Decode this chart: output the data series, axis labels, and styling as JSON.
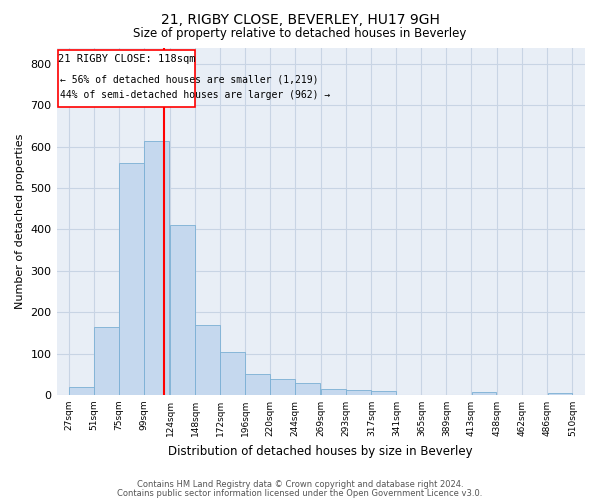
{
  "title": "21, RIGBY CLOSE, BEVERLEY, HU17 9GH",
  "subtitle": "Size of property relative to detached houses in Beverley",
  "xlabel": "Distribution of detached houses by size in Beverley",
  "ylabel": "Number of detached properties",
  "bar_color": "#c5d8ee",
  "bar_edge_color": "#7aafd4",
  "grid_color": "#c8d4e4",
  "bg_color": "#e8eef6",
  "vline_x": 118,
  "vline_color": "red",
  "bin_starts": [
    27,
    51,
    75,
    99,
    124,
    148,
    172,
    196,
    220,
    244,
    269,
    293,
    317,
    341,
    365,
    389,
    413,
    438,
    462,
    486
  ],
  "bin_width": 24,
  "bin_labels": [
    "27sqm",
    "51sqm",
    "75sqm",
    "99sqm",
    "124sqm",
    "148sqm",
    "172sqm",
    "196sqm",
    "220sqm",
    "244sqm",
    "269sqm",
    "293sqm",
    "317sqm",
    "341sqm",
    "365sqm",
    "389sqm",
    "413sqm",
    "438sqm",
    "462sqm",
    "486sqm",
    "510sqm"
  ],
  "bar_heights": [
    18,
    165,
    560,
    615,
    410,
    170,
    103,
    50,
    38,
    30,
    14,
    12,
    10,
    0,
    0,
    0,
    7,
    0,
    0,
    5
  ],
  "annotation_title": "21 RIGBY CLOSE: 118sqm",
  "annotation_line1": "← 56% of detached houses are smaller (1,219)",
  "annotation_line2": "44% of semi-detached houses are larger (962) →",
  "footer1": "Contains HM Land Registry data © Crown copyright and database right 2024.",
  "footer2": "Contains public sector information licensed under the Open Government Licence v3.0.",
  "ylim": [
    0,
    840
  ],
  "yticks": [
    0,
    100,
    200,
    300,
    400,
    500,
    600,
    700,
    800
  ]
}
